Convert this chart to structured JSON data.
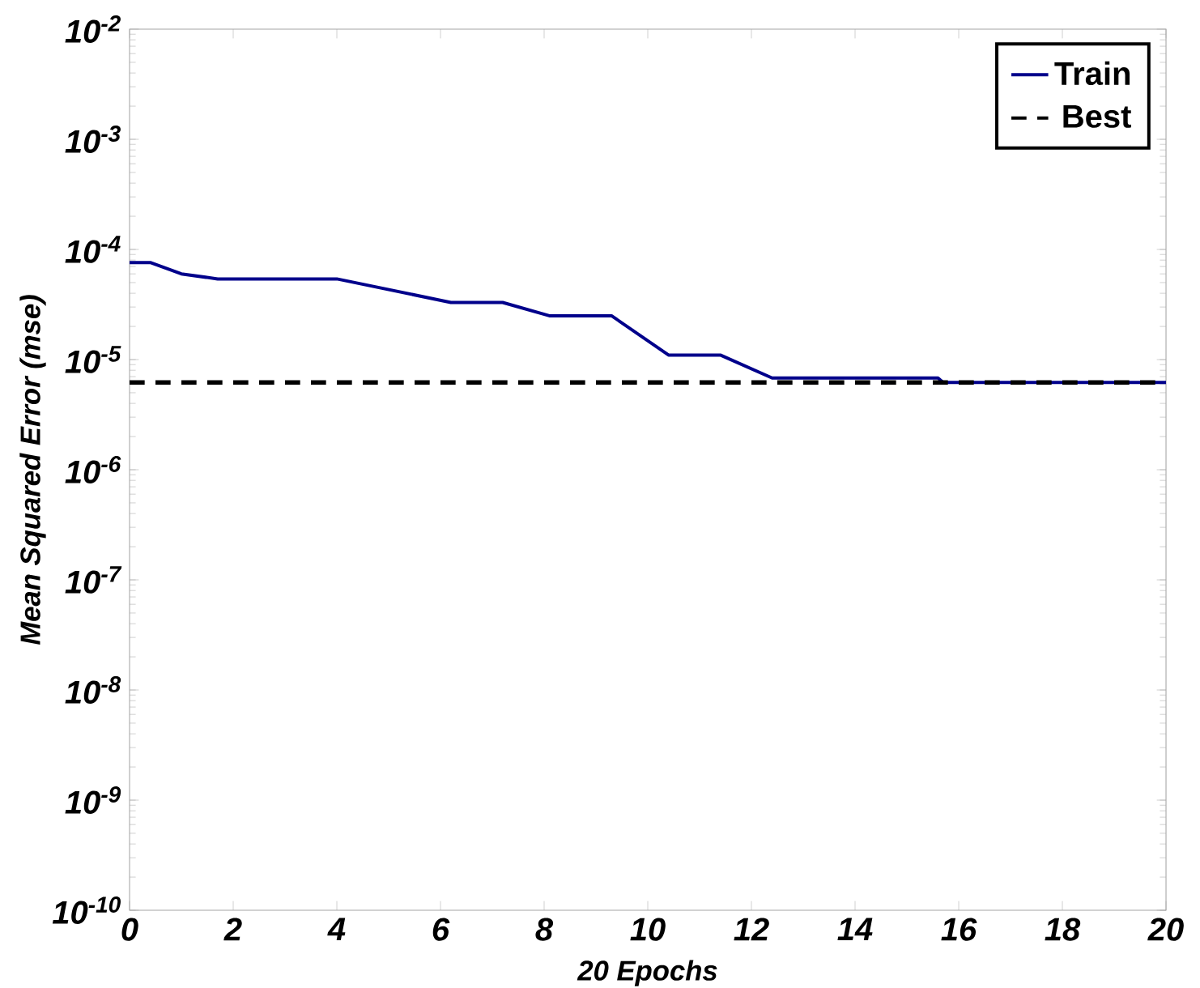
{
  "chart_data": {
    "type": "line",
    "xlabel": "20 Epochs",
    "ylabel": "Mean Squared Error (mse)",
    "series": [
      {
        "name": "Train",
        "color": "#00008b",
        "line_style": "solid",
        "x": [
          0,
          0.4,
          1,
          1.7,
          4,
          6.2,
          7.2,
          8.1,
          9.3,
          10.4,
          11.4,
          12.4,
          15.6,
          15.7,
          20
        ],
        "values": [
          7.6e-05,
          7.6e-05,
          6e-05,
          5.4e-05,
          5.4e-05,
          3.3e-05,
          3.3e-05,
          2.5e-05,
          2.5e-05,
          1.1e-05,
          1.1e-05,
          6.8e-06,
          6.8e-06,
          6.2e-06,
          6.2e-06
        ]
      },
      {
        "name": "Best",
        "color": "#000000",
        "line_style": "dashed",
        "x": [
          0,
          20
        ],
        "values": [
          6.2e-06,
          6.2e-06
        ]
      }
    ],
    "xlim": [
      0,
      20
    ],
    "xticks": [
      0,
      2,
      4,
      6,
      8,
      10,
      12,
      14,
      16,
      18,
      20
    ],
    "ylim": [
      1e-10,
      0.01
    ],
    "log": "y",
    "yticks": [
      {
        "value": 1e-10,
        "label": "10$^{-10}$"
      },
      {
        "value": 1e-09,
        "label": "10$^{-9}$"
      },
      {
        "value": 1e-08,
        "label": "10$^{-8}$"
      },
      {
        "value": 1e-07,
        "label": "10$^{-7}$"
      },
      {
        "value": 1e-06,
        "label": "10$^{-6}$"
      },
      {
        "value": 1e-05,
        "label": "10$^{-5}$"
      },
      {
        "value": 0.0001,
        "label": "10$^{-4}$"
      },
      {
        "value": 0.001,
        "label": "10$^{-3}$"
      },
      {
        "value": 0.01,
        "label": "10$^{-2}$"
      }
    ],
    "legend": "top right",
    "grid": false,
    "marker": "none"
  }
}
